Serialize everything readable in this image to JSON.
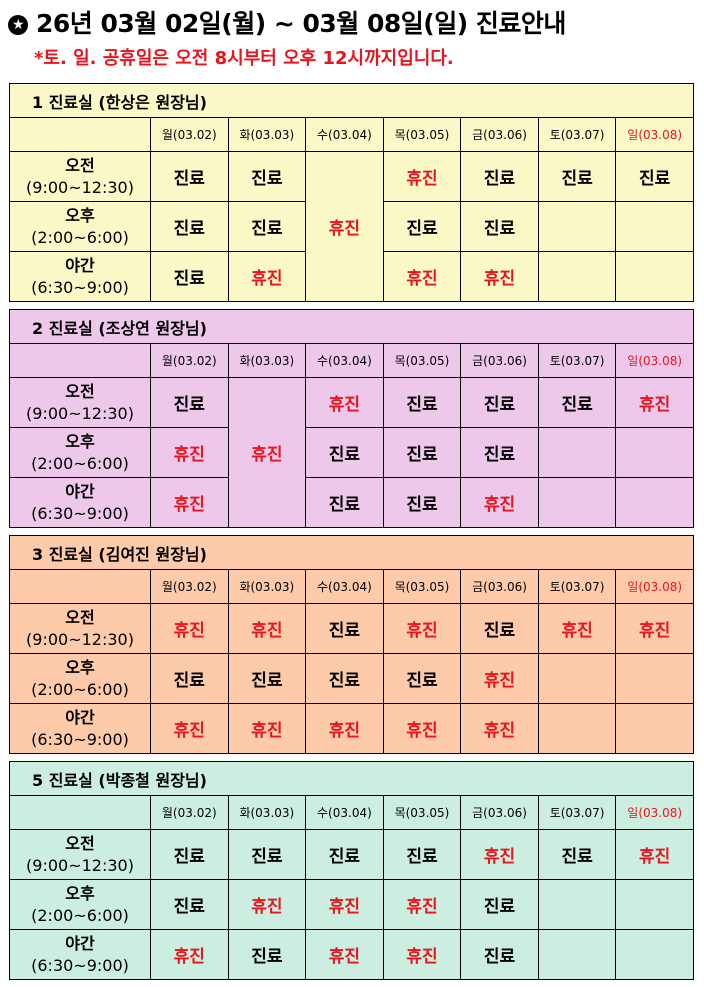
{
  "title": "26년 03월 02일(월) ~ 03월 08일(일) 진료안내",
  "title_icon": "star-circle-icon",
  "note": "*토. 일. 공휴일은 오전 8시부터 오후 12시까지입니다.",
  "colors": {
    "closed_text": "#e8141e",
    "sunday_header": "#e8141e"
  },
  "days": [
    "월(03.02)",
    "화(03.03)",
    "수(03.04)",
    "목(03.05)",
    "금(03.06)",
    "토(03.07)",
    "일(03.08)"
  ],
  "slots": [
    {
      "name": "오전",
      "time": "(9:00~12:30)"
    },
    {
      "name": "오후",
      "time": "(2:00~6:00)"
    },
    {
      "name": "야간",
      "time": "(6:30~9:00)"
    }
  ],
  "rooms": [
    {
      "title": "1 진료실 (한상은 원장님)",
      "bg": "#faf8c6",
      "rows": [
        [
          "진료",
          "진료",
          {
            "text": "휴진",
            "rowspan": 3
          },
          "휴진",
          "진료",
          "진료",
          "진료"
        ],
        [
          "진료",
          "진료",
          null,
          "진료",
          "진료",
          "",
          ""
        ],
        [
          "진료",
          "휴진",
          null,
          "휴진",
          "휴진",
          "",
          ""
        ]
      ]
    },
    {
      "title": "2 진료실 (조상연 원장님)",
      "bg": "#edc8eb",
      "rows": [
        [
          "진료",
          {
            "text": "휴진",
            "rowspan": 3
          },
          "휴진",
          "진료",
          "진료",
          "진료",
          "휴진"
        ],
        [
          "휴진",
          null,
          "진료",
          "진료",
          "진료",
          "",
          ""
        ],
        [
          "휴진",
          null,
          "진료",
          "진료",
          "휴진",
          "",
          ""
        ]
      ]
    },
    {
      "title": "3 진료실 (김여진 원장님)",
      "bg": "#fdcbaa",
      "rows": [
        [
          "휴진",
          "휴진",
          "진료",
          "휴진",
          "진료",
          "휴진",
          "휴진"
        ],
        [
          "진료",
          "진료",
          "진료",
          "진료",
          "휴진",
          "",
          ""
        ],
        [
          "휴진",
          "휴진",
          "휴진",
          "휴진",
          "휴진",
          "",
          ""
        ]
      ]
    },
    {
      "title": "5 진료실 (박종철 원장님)",
      "bg": "#cbeee1",
      "rows": [
        [
          "진료",
          "진료",
          "진료",
          "진료",
          "휴진",
          "진료",
          "휴진"
        ],
        [
          "진료",
          "휴진",
          "휴진",
          "휴진",
          "진료",
          "",
          ""
        ],
        [
          "휴진",
          "진료",
          "휴진",
          "휴진",
          "진료",
          "",
          ""
        ]
      ]
    }
  ]
}
